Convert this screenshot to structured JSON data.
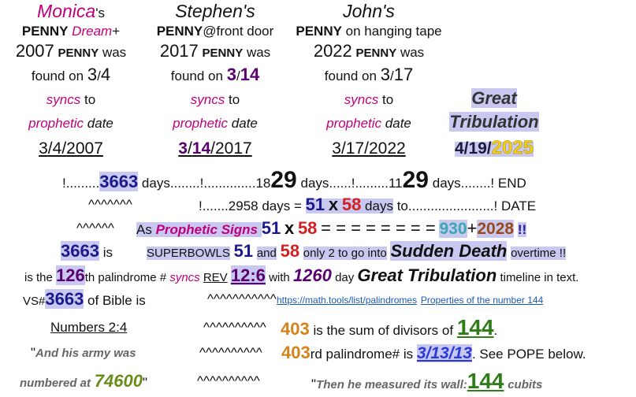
{
  "columns": [
    [
      [
        "Monica",
        "'s"
      ],
      [
        "PENNY",
        "Dream",
        "+"
      ],
      [
        "2007",
        "PENNY",
        "was"
      ],
      [
        "found on",
        "3",
        "/",
        "4"
      ],
      [
        "syncs",
        "to"
      ],
      [
        "prophetic",
        "date"
      ],
      [
        "3",
        "/",
        "4",
        "/",
        "2007"
      ]
    ],
    [
      [
        "Stephen's"
      ],
      [
        "PENNY",
        "@front door"
      ],
      [
        "2017",
        "PENNY",
        "was"
      ],
      [
        "found on",
        "3",
        "/",
        "14"
      ],
      [
        "syncs",
        "to"
      ],
      [
        "prophetic",
        "date"
      ],
      [
        "3",
        "/",
        "14",
        "/2017"
      ]
    ],
    [
      [
        "John's"
      ],
      [
        "PENNY",
        "on hanging tape"
      ],
      [
        "2022",
        "PENNY",
        "was"
      ],
      [
        "found on",
        "3",
        "/",
        "17"
      ],
      [
        "syncs",
        "to"
      ],
      [
        "prophetic",
        "date"
      ],
      [
        "3/17/2022"
      ]
    ],
    [
      [
        "Great"
      ],
      [
        "Tribulation"
      ],
      [
        "4/19/",
        "2025"
      ]
    ]
  ],
  "lines": [
    [
      [
        "!.........",
        "3663",
        "days........!..............18",
        "29",
        "days......!.........11",
        "29",
        "days........! END"
      ]
    ],
    [
      [
        "^^^^^^^"
      ],
      [
        "!.......2958 days =",
        "51",
        "x",
        "58",
        "days",
        "to.......................! DATE"
      ]
    ],
    [
      [
        "^^^^^^"
      ],
      [
        "As",
        "Prophetic Signs",
        "51",
        "x",
        "58",
        "= = = = = = = =",
        "930",
        "+",
        "2028",
        "!!"
      ]
    ],
    [
      [
        "3663",
        "is"
      ],
      [
        "SUPERBOWLS",
        "51",
        "and",
        "58",
        "only 2 to go into",
        "Sudden Death",
        "overtime !!"
      ]
    ],
    [
      [
        "is the",
        "126",
        "th palindrome #",
        "syncs",
        "REV",
        "12:6",
        "with",
        "1260",
        "day",
        "Great Tribulation",
        "timeline in text."
      ]
    ],
    [
      [
        "VS#",
        "3663",
        "of Bible is"
      ],
      [
        "^^^^^^^^^^^"
      ],
      [
        "https://math.tools/list/palindromes",
        "Properties of the number 144"
      ]
    ],
    [
      [
        "Numbers 2:4"
      ],
      [
        "^^^^^^^^^^"
      ],
      [
        "403",
        "is the sum of divisors of",
        "144",
        "."
      ]
    ],
    [
      [
        "\"",
        "And his army was"
      ],
      [
        "^^^^^^^^^^"
      ],
      [
        "403",
        "rd palindrome# is",
        "3/13/13",
        ". See POPE below."
      ]
    ],
    [
      [
        "numbered at",
        "74600",
        "\""
      ],
      [
        "^^^^^^^^^^"
      ],
      [
        "\"",
        "Then he measured its wall:",
        "144",
        "cubits"
      ]
    ]
  ]
}
